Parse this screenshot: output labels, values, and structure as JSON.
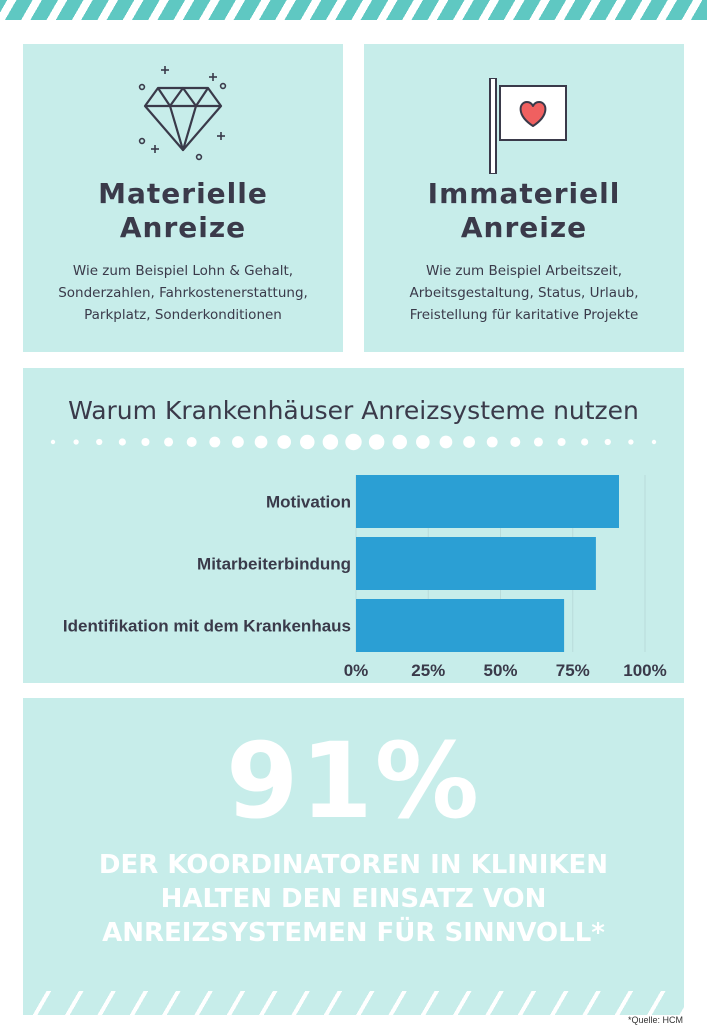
{
  "cards": [
    {
      "icon": "diamond-icon",
      "title_lines": [
        "Materielle",
        "Anreize"
      ],
      "text_lines": [
        "Wie zum Beispiel Lohn & Gehalt,",
        "Sonderzahlen, Fahrkostenerstattung,",
        "Parkplatz, Sonderkonditionen"
      ]
    },
    {
      "icon": "heart-flag-icon",
      "title_lines": [
        "Immateriell",
        "Anreize"
      ],
      "text_lines": [
        "Wie zum Beispiel Arbeitszeit,",
        "Arbeitsgestaltung, Status, Urlaub,",
        "Freistellung für karitative Projekte"
      ]
    }
  ],
  "chart_data": {
    "type": "bar",
    "orientation": "horizontal",
    "title": "Warum Krankenhäuser Anreizsysteme nutzen",
    "categories": [
      "Motivation",
      "Mitarbeiterbindung",
      "Identifikation mit dem Krankenhaus"
    ],
    "values": [
      91,
      83,
      72
    ],
    "xlim": [
      0,
      100
    ],
    "tick_labels": [
      "0%",
      "25%",
      "50%",
      "75%",
      "100%"
    ],
    "bar_color": "#2b9fd4",
    "grid": true
  },
  "stat": {
    "number": "91%",
    "text_lines": [
      "DER KOORDINATOREN IN KLINIKEN",
      "HALTEN DEN EINSATZ VON",
      "ANREIZSYSTEMEN FÜR SINNVOLL*"
    ]
  },
  "source": "*Quelle: HCM",
  "colors": {
    "panel": "#c7edea",
    "accent": "#5fc8c2",
    "text": "#3a3a4a",
    "heart": "#f06060"
  }
}
